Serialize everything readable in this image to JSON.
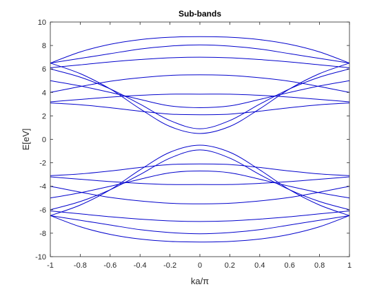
{
  "chart_data": {
    "type": "line",
    "title": "Sub-bands",
    "xlabel": "ka/π",
    "ylabel": "E[eV]",
    "xlim": [
      -1,
      1
    ],
    "ylim": [
      -10,
      10
    ],
    "xticks": [
      -1,
      -0.8,
      -0.6,
      -0.4,
      -0.2,
      0,
      0.2,
      0.4,
      0.6,
      0.8,
      1
    ],
    "xtick_labels": [
      "-1",
      "-0.8",
      "-0.6",
      "-0.4",
      "-0.2",
      "0",
      "0.2",
      "0.4",
      "0.6",
      "0.8",
      "1"
    ],
    "yticks": [
      -10,
      -8,
      -6,
      -4,
      -2,
      0,
      2,
      4,
      6,
      8,
      10
    ],
    "ytick_labels": [
      "-10",
      "-8",
      "-6",
      "-4",
      "-2",
      "0",
      "2",
      "4",
      "6",
      "8",
      "10"
    ],
    "grid": false,
    "box": true,
    "line_color": "#0000cc",
    "x": [
      -1,
      -0.8,
      -0.6,
      -0.4,
      -0.2,
      0,
      0.2,
      0.4,
      0.6,
      0.8,
      1
    ],
    "series": [
      {
        "values": [
          6.5,
          7.45,
          8.1,
          8.5,
          8.7,
          8.75,
          8.7,
          8.5,
          8.1,
          7.45,
          6.5
        ]
      },
      {
        "values": [
          6.5,
          6.9,
          7.3,
          7.7,
          7.95,
          8.05,
          7.95,
          7.7,
          7.3,
          6.9,
          6.5
        ]
      },
      {
        "values": [
          6.1,
          6.35,
          6.6,
          6.8,
          6.95,
          7.0,
          6.95,
          6.8,
          6.6,
          6.35,
          6.1
        ]
      },
      {
        "values": [
          4.0,
          4.5,
          4.95,
          5.25,
          5.45,
          5.5,
          5.45,
          5.25,
          4.95,
          4.5,
          4.0
        ]
      },
      {
        "values": [
          3.2,
          3.4,
          3.6,
          3.75,
          3.85,
          3.85,
          3.85,
          3.75,
          3.6,
          3.4,
          3.2
        ]
      },
      {
        "values": [
          3.1,
          2.95,
          2.7,
          2.4,
          2.15,
          2.1,
          2.15,
          2.4,
          2.7,
          2.95,
          3.1
        ]
      },
      {
        "values": [
          5.0,
          4.55,
          4.0,
          3.4,
          2.85,
          2.7,
          2.85,
          3.4,
          4.0,
          4.55,
          5.0
        ]
      },
      {
        "values": [
          6.0,
          5.3,
          4.3,
          3.0,
          1.6,
          0.9,
          1.6,
          3.0,
          4.3,
          5.3,
          6.0
        ]
      },
      {
        "values": [
          6.5,
          5.6,
          4.3,
          2.6,
          1.1,
          0.5,
          1.1,
          2.6,
          4.3,
          5.6,
          6.5
        ]
      },
      {
        "values": [
          -6.5,
          -7.45,
          -8.1,
          -8.5,
          -8.7,
          -8.75,
          -8.7,
          -8.5,
          -8.1,
          -7.45,
          -6.5
        ]
      },
      {
        "values": [
          -6.5,
          -6.9,
          -7.3,
          -7.7,
          -7.95,
          -8.05,
          -7.95,
          -7.7,
          -7.3,
          -6.9,
          -6.5
        ]
      },
      {
        "values": [
          -6.1,
          -6.35,
          -6.6,
          -6.8,
          -6.95,
          -7.0,
          -6.95,
          -6.8,
          -6.6,
          -6.35,
          -6.1
        ]
      },
      {
        "values": [
          -4.0,
          -4.5,
          -4.95,
          -5.25,
          -5.45,
          -5.5,
          -5.45,
          -5.25,
          -4.95,
          -4.5,
          -4.0
        ]
      },
      {
        "values": [
          -3.2,
          -3.4,
          -3.6,
          -3.75,
          -3.85,
          -3.85,
          -3.85,
          -3.75,
          -3.6,
          -3.4,
          -3.2
        ]
      },
      {
        "values": [
          -3.1,
          -2.95,
          -2.7,
          -2.4,
          -2.15,
          -2.1,
          -2.15,
          -2.4,
          -2.7,
          -2.95,
          -3.1
        ]
      },
      {
        "values": [
          -5.0,
          -4.55,
          -4.0,
          -3.4,
          -2.85,
          -2.7,
          -2.85,
          -3.4,
          -4.0,
          -4.55,
          -5.0
        ]
      },
      {
        "values": [
          -6.0,
          -5.3,
          -4.3,
          -3.0,
          -1.6,
          -0.9,
          -1.6,
          -3.0,
          -4.3,
          -5.3,
          -6.0
        ]
      },
      {
        "values": [
          -6.5,
          -5.6,
          -4.3,
          -2.6,
          -1.1,
          -0.5,
          -1.1,
          -2.6,
          -4.3,
          -5.6,
          -6.5
        ]
      }
    ]
  }
}
